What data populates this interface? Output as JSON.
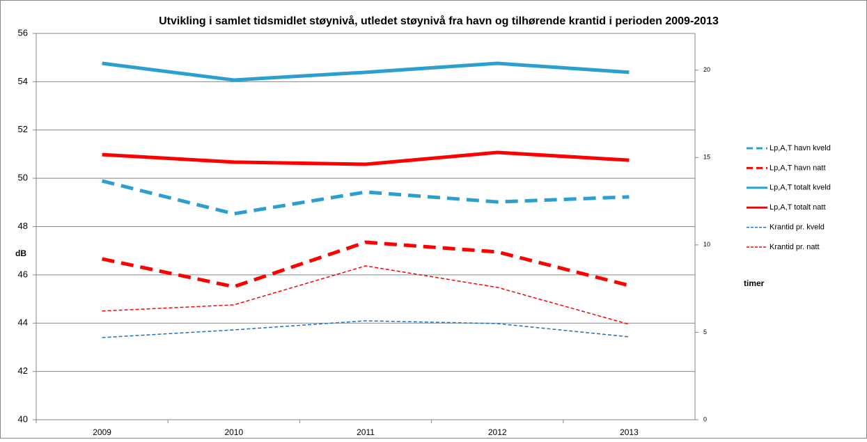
{
  "chart_data": {
    "type": "line",
    "title": "Utvikling i samlet tidsmidlet støynivå, utledet støynivå fra havn og tilhørende krantid i perioden 2009-2013",
    "ylabel": "dB",
    "y2label": "timer",
    "categories": [
      "2009",
      "2010",
      "2011",
      "2012",
      "2013"
    ],
    "ylim": [
      40,
      56
    ],
    "yticks": [
      40,
      42,
      44,
      46,
      48,
      50,
      52,
      54,
      56
    ],
    "y2lim": [
      0,
      22.1
    ],
    "y2ticks": [
      0,
      5,
      10,
      15,
      20
    ],
    "grid": true,
    "legend": "right",
    "series": [
      {
        "name": "Lp,A,T havn kveld",
        "color": "#2a9fd0",
        "line_style": "bold-dashed",
        "values": [
          49.89,
          48.53,
          49.43,
          49.02,
          49.23
        ]
      },
      {
        "name": "Lp,A,T havn natt",
        "color": "#ff0000",
        "line_style": "bold-dashed",
        "values": [
          46.66,
          45.51,
          47.35,
          46.95,
          45.56
        ]
      },
      {
        "name": "Lp,A,T totalt kveld",
        "color": "#2a9fd0",
        "line_style": "bold",
        "values": [
          54.76,
          54.07,
          54.39,
          54.76,
          54.39
        ]
      },
      {
        "name": "Lp,A,T totalt natt",
        "color": "#ff0000",
        "line_style": "bold",
        "values": [
          50.98,
          50.67,
          50.58,
          51.07,
          50.75
        ]
      },
      {
        "name": "Krantid pr. kveld",
        "color": "#1f6fbf",
        "line_style": "dashed",
        "axis": "y2",
        "values": [
          4.7,
          5.14,
          5.66,
          5.5,
          4.74
        ]
      },
      {
        "name": "Krantid pr. natt",
        "color": "#ff0000",
        "line_style": "dashed",
        "axis": "y2",
        "values": [
          6.22,
          6.57,
          8.8,
          7.57,
          5.46
        ]
      }
    ]
  }
}
